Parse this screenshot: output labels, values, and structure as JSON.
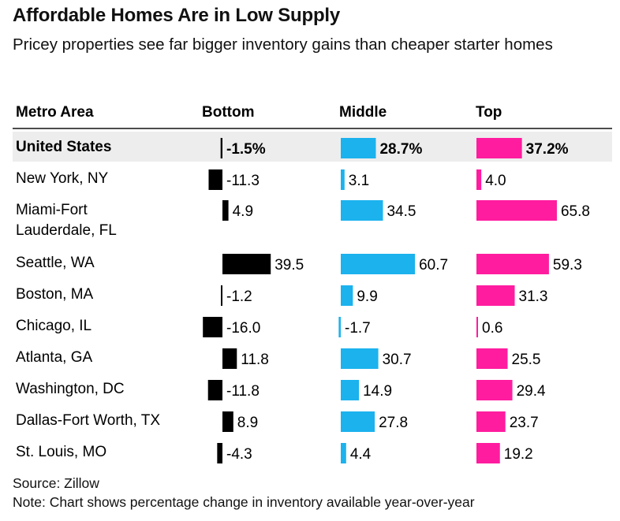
{
  "chart_data": {
    "type": "table",
    "title": "Affordable Homes Are in Low Supply",
    "subtitle": "Pricey properties see far bigger inventory gains than cheaper starter homes",
    "columns": [
      "Metro Area",
      "Bottom",
      "Middle",
      "Top"
    ],
    "rows": [
      {
        "metro": [
          "United States"
        ],
        "bottom": -1.5,
        "middle": 28.7,
        "top": 37.2,
        "bottom_label": "-1.5%",
        "middle_label": "28.7%",
        "top_label": "37.2%",
        "highlight": true
      },
      {
        "metro": [
          "New York, NY"
        ],
        "bottom": -11.3,
        "middle": 3.1,
        "top": 4.0,
        "bottom_label": "-11.3",
        "middle_label": "3.1",
        "top_label": "4.0"
      },
      {
        "metro": [
          "Miami-Fort",
          "Lauderdale, FL"
        ],
        "bottom": 4.9,
        "middle": 34.5,
        "top": 65.8,
        "bottom_label": "4.9",
        "middle_label": "34.5",
        "top_label": "65.8"
      },
      {
        "metro": [
          "Seattle, WA"
        ],
        "bottom": 39.5,
        "middle": 60.7,
        "top": 59.3,
        "bottom_label": "39.5",
        "middle_label": "60.7",
        "top_label": "59.3"
      },
      {
        "metro": [
          "Boston, MA"
        ],
        "bottom": -1.2,
        "middle": 9.9,
        "top": 31.3,
        "bottom_label": "-1.2",
        "middle_label": "9.9",
        "top_label": "31.3"
      },
      {
        "metro": [
          "Chicago, IL"
        ],
        "bottom": -16.0,
        "middle": -1.7,
        "top": 0.6,
        "bottom_label": "-16.0",
        "middle_label": "-1.7",
        "top_label": "0.6"
      },
      {
        "metro": [
          "Atlanta, GA"
        ],
        "bottom": 11.8,
        "middle": 30.7,
        "top": 25.5,
        "bottom_label": "11.8",
        "middle_label": "30.7",
        "top_label": "25.5"
      },
      {
        "metro": [
          "Washington, DC"
        ],
        "bottom": -11.8,
        "middle": 14.9,
        "top": 29.4,
        "bottom_label": "-11.8",
        "middle_label": "14.9",
        "top_label": "29.4"
      },
      {
        "metro": [
          "Dallas-Fort Worth, TX"
        ],
        "bottom": 8.9,
        "middle": 27.8,
        "top": 23.7,
        "bottom_label": "8.9",
        "middle_label": "27.8",
        "top_label": "23.7"
      },
      {
        "metro": [
          "St. Louis, MO"
        ],
        "bottom": -4.3,
        "middle": 4.4,
        "top": 19.2,
        "bottom_label": "-4.3",
        "middle_label": "4.4",
        "top_label": "19.2"
      }
    ],
    "colors": {
      "bottom": "#000000",
      "middle": "#1bb2ee",
      "top": "#ff1c9f",
      "highlight_row": "#ededed"
    }
  },
  "source": "Source: Zillow",
  "note": "Note: Chart shows percentage change in inventory available year-over-year"
}
